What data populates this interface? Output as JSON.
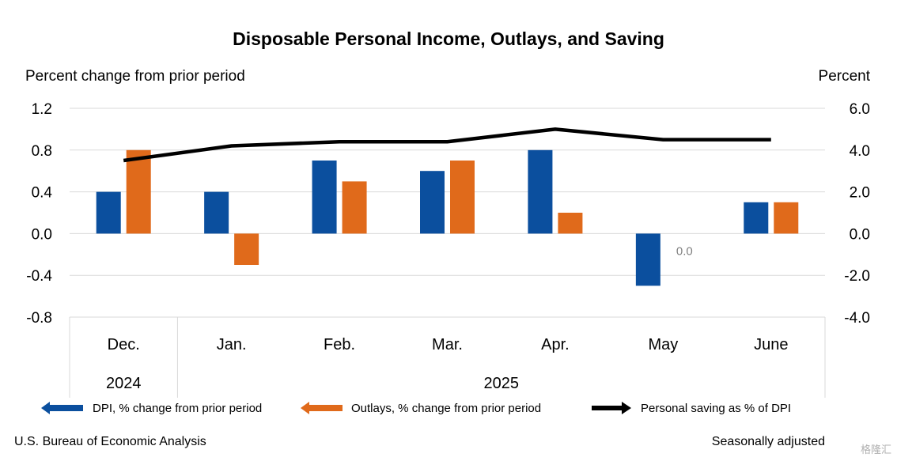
{
  "chart_data": {
    "type": "bar",
    "title": "Disposable Personal Income, Outlays, and Saving",
    "left_axis_label": "Percent change from prior period",
    "right_axis_label": "Percent",
    "categories": [
      "Dec.",
      "Jan.",
      "Feb.",
      "Mar.",
      "Apr.",
      "May",
      "June"
    ],
    "year_labels": [
      {
        "label": "2024",
        "categories": [
          "Dec."
        ]
      },
      {
        "label": "2025",
        "categories": [
          "Jan.",
          "Feb.",
          "Mar.",
          "Apr.",
          "May",
          "June"
        ]
      }
    ],
    "ylim": [
      -0.8,
      1.2
    ],
    "y_ticks": [
      "1.2",
      "0.8",
      "0.4",
      "0.0",
      "-0.4",
      "-0.8"
    ],
    "y2lim": [
      -4.0,
      6.0
    ],
    "y2_ticks": [
      "6.0",
      "4.0",
      "2.0",
      "0.0",
      "-2.0",
      "-4.0"
    ],
    "grid": true,
    "legend_position": "bottom",
    "series": [
      {
        "name": "DPI, % change from prior period",
        "type": "bar",
        "axis": "left",
        "color": "#0b4f9e",
        "values": [
          0.4,
          0.4,
          0.7,
          0.6,
          0.8,
          -0.5,
          0.3
        ]
      },
      {
        "name": "Outlays, % change from prior period",
        "type": "bar",
        "axis": "left",
        "color": "#e06a1b",
        "values": [
          0.8,
          -0.3,
          0.5,
          0.7,
          0.2,
          0.0,
          0.3
        ]
      },
      {
        "name": "Personal saving as % of DPI",
        "type": "line",
        "axis": "right",
        "color": "#000000",
        "values": [
          3.5,
          4.2,
          4.4,
          4.4,
          5.0,
          4.5,
          4.5
        ]
      }
    ],
    "data_labels": [
      {
        "series": "Outlays, % change from prior period",
        "category": "May",
        "text": "0.0"
      }
    ]
  },
  "footer": {
    "source": "U.S. Bureau of Economic Analysis",
    "note": "Seasonally adjusted"
  },
  "watermark": "格隆汇"
}
